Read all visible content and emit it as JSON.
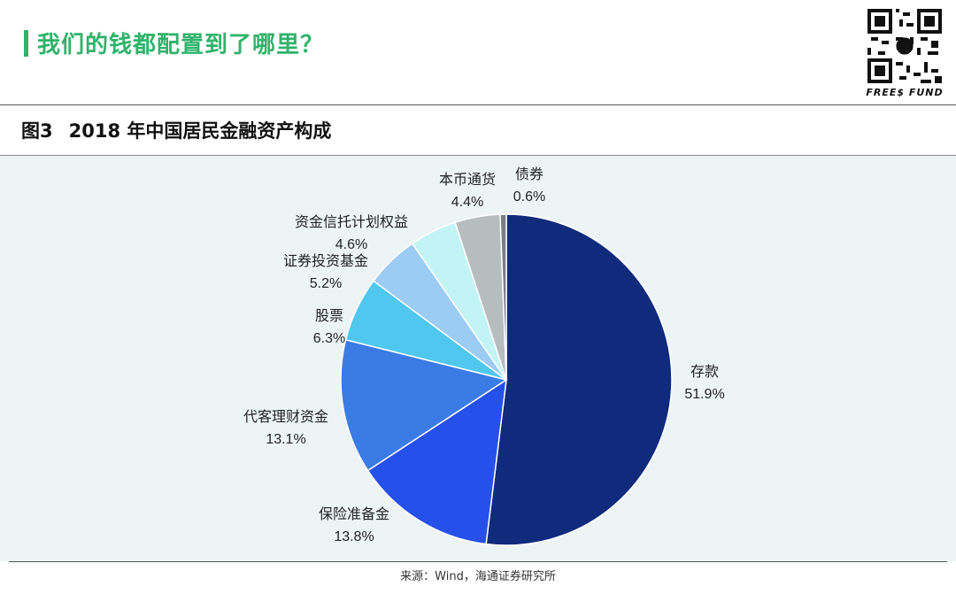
{
  "header": {
    "title": "我们的钱都配置到了哪里？",
    "accent_color": "#2fb36a",
    "logo_text": "FREE$ FUND"
  },
  "figure": {
    "number": "图3",
    "title": "2018 年中国居民金融资产构成"
  },
  "source": "来源：Wind，海通证券研究所",
  "chart_data": {
    "type": "pie",
    "title": "2018 年中国居民金融资产构成",
    "unit": "%",
    "slices": [
      {
        "name": "存款",
        "value": 51.9,
        "label": "51.9%",
        "color": "#102a7c"
      },
      {
        "name": "保险准备金",
        "value": 13.8,
        "label": "13.8%",
        "color": "#2650ea"
      },
      {
        "name": "代客理财资金",
        "value": 13.1,
        "label": "13.1%",
        "color": "#3b7be6"
      },
      {
        "name": "股票",
        "value": 6.3,
        "label": "6.3%",
        "color": "#4fc7ef"
      },
      {
        "name": "证券投资基金",
        "value": 5.2,
        "label": "5.2%",
        "color": "#9ccbf3"
      },
      {
        "name": "资金信托计划权益",
        "value": 4.6,
        "label": "4.6%",
        "color": "#c3f4f5"
      },
      {
        "name": "本币通货",
        "value": 4.4,
        "label": "4.4%",
        "color": "#b7bcbc"
      },
      {
        "name": "债券",
        "value": 0.6,
        "label": "0.6%",
        "color": "#7a7f80"
      }
    ]
  }
}
